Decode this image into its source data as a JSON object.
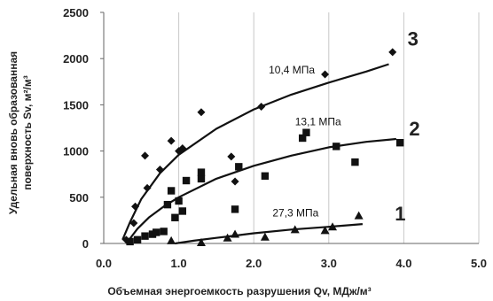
{
  "chart_data": {
    "type": "scatter",
    "xlabel": "Объемная энергоемкость разрушения Qv, МДж/м³",
    "ylabel_line1": "Удельная вновь образованная",
    "ylabel_line2": "поверхность Sv, м²/м³",
    "xlim": [
      0.0,
      5.0
    ],
    "ylim": [
      0,
      2500
    ],
    "x_ticks": [
      "0.0",
      "1.0",
      "2.0",
      "3.0",
      "4.0",
      "5.0"
    ],
    "y_ticks": [
      "0",
      "500",
      "1000",
      "1500",
      "2000",
      "2500"
    ],
    "grid": "vertical",
    "series": [
      {
        "marker": "diamond",
        "curve_label": "3",
        "annotation": "10,4 МПа",
        "color": "#111111",
        "points": [
          [
            0.3,
            40
          ],
          [
            0.4,
            220
          ],
          [
            0.42,
            400
          ],
          [
            0.55,
            950
          ],
          [
            0.58,
            600
          ],
          [
            0.75,
            800
          ],
          [
            0.9,
            1110
          ],
          [
            1.0,
            1000
          ],
          [
            1.05,
            1030
          ],
          [
            1.3,
            1420
          ],
          [
            1.7,
            940
          ],
          [
            1.75,
            670
          ],
          [
            2.1,
            1480
          ],
          [
            2.95,
            1830
          ],
          [
            3.85,
            2070
          ]
        ],
        "fit": [
          [
            0.25,
            40
          ],
          [
            0.35,
            230
          ],
          [
            0.5,
            480
          ],
          [
            0.75,
            760
          ],
          [
            1.0,
            960
          ],
          [
            1.5,
            1240
          ],
          [
            2.0,
            1450
          ],
          [
            2.5,
            1610
          ],
          [
            3.0,
            1740
          ],
          [
            3.5,
            1860
          ],
          [
            3.8,
            1940
          ]
        ]
      },
      {
        "marker": "square",
        "curve_label": "2",
        "annotation": "13,1 МПа",
        "color": "#111111",
        "points": [
          [
            0.35,
            20
          ],
          [
            0.45,
            40
          ],
          [
            0.55,
            80
          ],
          [
            0.65,
            100
          ],
          [
            0.7,
            120
          ],
          [
            0.8,
            130
          ],
          [
            0.85,
            420
          ],
          [
            0.9,
            570
          ],
          [
            0.95,
            280
          ],
          [
            1.0,
            460
          ],
          [
            1.05,
            350
          ],
          [
            1.1,
            680
          ],
          [
            1.3,
            700
          ],
          [
            1.3,
            770
          ],
          [
            1.75,
            370
          ],
          [
            1.8,
            830
          ],
          [
            2.15,
            730
          ],
          [
            2.65,
            1140
          ],
          [
            2.7,
            1200
          ],
          [
            3.1,
            1050
          ],
          [
            3.35,
            880
          ],
          [
            3.95,
            1090
          ]
        ],
        "fit": [
          [
            0.3,
            0
          ],
          [
            0.45,
            160
          ],
          [
            0.6,
            280
          ],
          [
            0.8,
            400
          ],
          [
            1.0,
            500
          ],
          [
            1.5,
            700
          ],
          [
            2.0,
            840
          ],
          [
            2.5,
            950
          ],
          [
            3.0,
            1040
          ],
          [
            3.5,
            1100
          ],
          [
            3.9,
            1130
          ]
        ]
      },
      {
        "marker": "triangle",
        "curve_label": "1",
        "annotation": "27,3 МПа",
        "color": "#111111",
        "points": [
          [
            0.9,
            30
          ],
          [
            1.3,
            10
          ],
          [
            1.65,
            60
          ],
          [
            1.75,
            100
          ],
          [
            2.15,
            70
          ],
          [
            2.55,
            150
          ],
          [
            2.95,
            140
          ],
          [
            3.05,
            180
          ],
          [
            3.4,
            300
          ]
        ],
        "fit": [
          [
            0.95,
            0
          ],
          [
            1.2,
            30
          ],
          [
            1.5,
            60
          ],
          [
            2.0,
            110
          ],
          [
            2.5,
            150
          ],
          [
            3.0,
            180
          ],
          [
            3.45,
            210
          ]
        ]
      }
    ]
  }
}
